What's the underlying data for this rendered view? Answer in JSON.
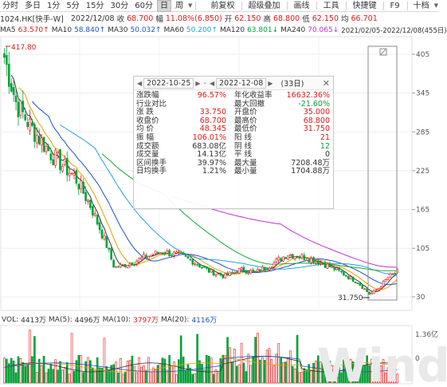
{
  "toolbar": {
    "items": [
      "分时",
      "多日",
      "1分",
      "5分",
      "15分",
      "30分",
      "60分",
      "日",
      "周"
    ],
    "active_index": 7,
    "right_items": [
      "前复权",
      "超级叠加",
      "画线",
      "工具",
      "快捷键",
      "F9",
      "十档"
    ]
  },
  "info": {
    "code": "1024.HK[快手-W]",
    "date": "2022/12/08",
    "open_label": "收",
    "open_value": "68.700",
    "change_label": "幅",
    "change_value": "11.08%(6.850)",
    "prev_label": "开",
    "prev_value": "62.150",
    "high_label": "高",
    "high_value": "68.800",
    "low_label": "低",
    "low_value": "62.150",
    "avg_label": "均",
    "avg_value": "66.701"
  },
  "ma": {
    "ma5_label": "MA5",
    "ma5_value": "63.570↑",
    "ma10_label": "MA10",
    "ma10_value": "58.840↑",
    "ma30_label": "MA30",
    "ma30_value": "50.032↑",
    "ma60_label": "MA60",
    "ma60_value": "50.200↑",
    "ma120_label": "MA120",
    "ma120_value": "63.801↓",
    "ma240_label": "MA240",
    "ma240_value": "70.065↓",
    "range": "2021/02/05-2022/12/08(455日)",
    "colors": {
      "ma5": "#333333",
      "ma10": "#e8a000",
      "ma30": "#1e50c8",
      "ma60": "#2aa0d8",
      "ma120": "#18a838",
      "ma240": "#c030d0"
    }
  },
  "price_axis": {
    "ticks": [
      "405",
      "345",
      "285",
      "225",
      "165",
      "105",
      "30"
    ]
  },
  "annotations": {
    "high_label": "417.80",
    "low_label": "31.750"
  },
  "stats": {
    "start_date": "2022-10-25",
    "end_date": "2022-12-08",
    "days": "(33日)",
    "rows": [
      {
        "l1": "涨跌幅",
        "v1": "96.57%",
        "c1": "red",
        "l2": "年化收益率",
        "v2": "16632.36%",
        "c2": "red"
      },
      {
        "l1": "行业对比",
        "v1": "",
        "c1": "dark",
        "l2": "最大回撤",
        "v2": "-21.60%",
        "c2": "green"
      },
      {
        "l1": "涨  跌",
        "v1": "33.750",
        "c1": "red",
        "l2": "开盘价",
        "v2": "35.000",
        "c2": "red"
      },
      {
        "l1": "收盘价",
        "v1": "68.700",
        "c1": "red",
        "l2": "最高价",
        "v2": "68.800",
        "c2": "red"
      },
      {
        "l1": "均  价",
        "v1": "48.345",
        "c1": "red",
        "l2": "最低价",
        "v2": "31.750",
        "c2": "red"
      },
      {
        "l1": "振  幅",
        "v1": "106.01%",
        "c1": "red",
        "l2": "阳  线",
        "v2": "21",
        "c2": "red"
      },
      {
        "l1": "成交额",
        "v1": "683.08亿",
        "c1": "dark",
        "l2": "阴  线",
        "v2": "12",
        "c2": "green"
      },
      {
        "l1": "成交量",
        "v1": "14.13亿",
        "c1": "dark",
        "l2": "平  线",
        "v2": "0",
        "c2": "dark"
      },
      {
        "l1": "区间换手",
        "v1": "39.97%",
        "c1": "dark",
        "l2": "最大量",
        "v2": "7208.48万",
        "c2": "dark"
      },
      {
        "l1": "日均换手",
        "v1": "1.21%",
        "c1": "dark",
        "l2": "最小量",
        "v2": "1704.88万",
        "c2": "dark"
      }
    ]
  },
  "volume": {
    "vol_label": "VOL:",
    "vol_value": "4413万",
    "ma5_label": "MA(5):",
    "ma5_value": "4496万",
    "ma10_label": "MA(10):",
    "ma10_value": "3797万",
    "ma20_label": "MA(20):",
    "ma20_value": "4116万",
    "axis_ticks": [
      "1.36亿",
      "0"
    ]
  },
  "colors": {
    "up": "#e11818",
    "down": "#08a03a",
    "grid": "#e8e8e8"
  },
  "watermark": "Wind"
}
